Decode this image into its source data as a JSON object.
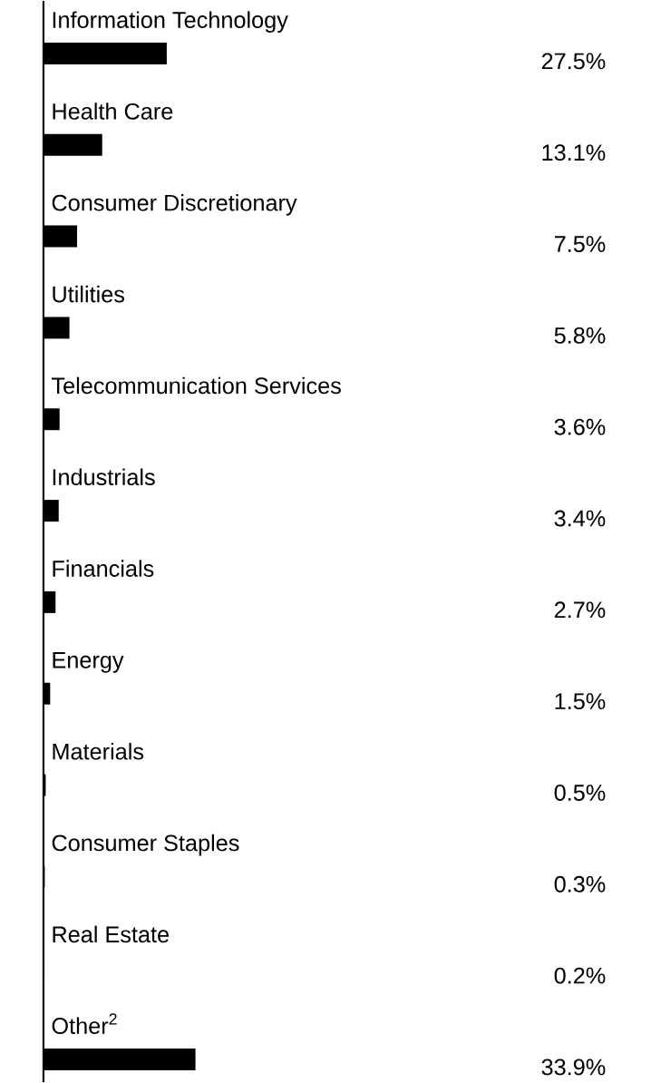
{
  "chart_data": {
    "type": "bar",
    "orientation": "horizontal",
    "categories": [
      "Information Technology",
      "Health Care",
      "Consumer Discretionary",
      "Utilities",
      "Telecommunication Services",
      "Industrials",
      "Financials",
      "Energy",
      "Materials",
      "Consumer Staples",
      "Real Estate",
      "Other$^{2}$"
    ],
    "values": [
      27.5,
      13.1,
      7.5,
      5.8,
      3.6,
      3.4,
      2.7,
      1.5,
      0.5,
      0.3,
      0.2,
      33.9
    ],
    "value_labels": [
      "27.5%",
      "13.1%",
      "7.5%",
      "5.8%",
      "3.6%",
      "3.4%",
      "2.7%",
      "1.5%",
      "0.5%",
      "0.3%",
      "0.2%",
      "33.9%"
    ],
    "color": "#000000"
  }
}
